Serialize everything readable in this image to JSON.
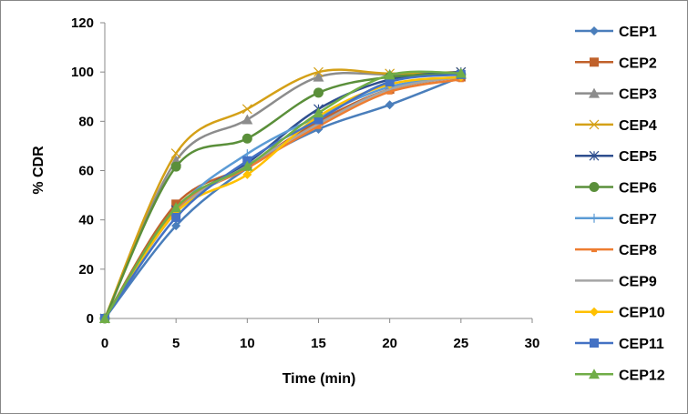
{
  "chart_data": {
    "type": "line",
    "title": "",
    "xlabel": "Time (min)",
    "ylabel": "% CDR",
    "xlim": [
      0,
      30
    ],
    "ylim": [
      0,
      120
    ],
    "xticks": [
      0,
      5,
      10,
      15,
      20,
      25,
      30
    ],
    "yticks": [
      0,
      20,
      40,
      60,
      80,
      100,
      120
    ],
    "grid": false,
    "legend_position": "right",
    "x": [
      0,
      5,
      10,
      15,
      20,
      25
    ],
    "series": [
      {
        "name": "CEP1",
        "color": "#4a7ebb",
        "marker": "diamond",
        "values": [
          0,
          37.6,
          61,
          76.8,
          86.7,
          98
        ]
      },
      {
        "name": "CEP2",
        "color": "#c0612b",
        "marker": "square",
        "values": [
          0,
          46.4,
          62,
          80,
          93,
          98
        ]
      },
      {
        "name": "CEP3",
        "color": "#8c8c8c",
        "marker": "triangle",
        "values": [
          0,
          64,
          80.7,
          98,
          99,
          99
        ]
      },
      {
        "name": "CEP4",
        "color": "#d4a017",
        "marker": "x",
        "values": [
          0,
          67,
          85,
          100,
          99.4,
          100
        ]
      },
      {
        "name": "CEP5",
        "color": "#2f4f8f",
        "marker": "star",
        "values": [
          0,
          44,
          63,
          85,
          97,
          100
        ]
      },
      {
        "name": "CEP6",
        "color": "#5a8f3a",
        "marker": "circle",
        "values": [
          0,
          61.6,
          73,
          91.6,
          98,
          99
        ]
      },
      {
        "name": "CEP7",
        "color": "#5b9bd5",
        "marker": "plus",
        "values": [
          0,
          44,
          66.8,
          82,
          94,
          98
        ]
      },
      {
        "name": "CEP8",
        "color": "#ed7d31",
        "marker": "dash",
        "values": [
          0,
          44,
          61,
          78,
          92,
          97
        ]
      },
      {
        "name": "CEP9",
        "color": "#a5a5a5",
        "marker": "none",
        "values": [
          0,
          43,
          62,
          79,
          93,
          98
        ]
      },
      {
        "name": "CEP10",
        "color": "#ffc000",
        "marker": "diamond",
        "values": [
          0,
          43,
          58.4,
          82,
          95,
          98
        ]
      },
      {
        "name": "CEP11",
        "color": "#4472c4",
        "marker": "square",
        "values": [
          0,
          41,
          64,
          80.7,
          96,
          99
        ]
      },
      {
        "name": "CEP12",
        "color": "#70ad47",
        "marker": "triangle",
        "values": [
          0,
          45,
          61.8,
          83.4,
          98.8,
          99.5
        ]
      }
    ]
  }
}
